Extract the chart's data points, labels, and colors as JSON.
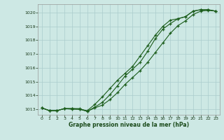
{
  "bg_color": "#cde8e4",
  "grid_color": "#aacccc",
  "line_color": "#1a5c1a",
  "marker_color": "#1a5c1a",
  "xlabel": "Graphe pression niveau de la mer (hPa)",
  "xlabel_color": "#1a4a1a",
  "ylim": [
    1012.6,
    1020.6
  ],
  "xlim": [
    -0.5,
    23.5
  ],
  "yticks": [
    1013,
    1014,
    1015,
    1016,
    1017,
    1018,
    1019,
    1020
  ],
  "xticks": [
    0,
    1,
    2,
    3,
    4,
    5,
    6,
    7,
    8,
    9,
    10,
    11,
    12,
    13,
    14,
    15,
    16,
    17,
    18,
    19,
    20,
    21,
    22,
    23
  ],
  "line1": [
    1013.1,
    1012.9,
    1012.9,
    1013.05,
    1013.05,
    1013.05,
    1012.85,
    1013.1,
    1013.3,
    1013.7,
    1014.2,
    1014.8,
    1015.3,
    1015.8,
    1016.4,
    1017.1,
    1017.8,
    1018.5,
    1019.05,
    1019.4,
    1019.85,
    1020.1,
    1020.15,
    1020.1
  ],
  "line2": [
    1013.1,
    1012.9,
    1012.9,
    1013.05,
    1013.05,
    1013.0,
    1012.85,
    1013.15,
    1013.5,
    1014.05,
    1014.7,
    1015.4,
    1015.9,
    1016.4,
    1017.2,
    1018.1,
    1018.8,
    1019.2,
    1019.55,
    1019.7,
    1020.1,
    1020.2,
    1020.2,
    1020.1
  ],
  "line3": [
    1013.1,
    1012.9,
    1012.9,
    1013.05,
    1013.0,
    1013.0,
    1012.9,
    1013.35,
    1013.9,
    1014.5,
    1015.1,
    1015.6,
    1016.1,
    1016.85,
    1017.6,
    1018.35,
    1019.0,
    1019.45,
    1019.55,
    1019.7,
    1020.1,
    1020.2,
    1020.2,
    1020.1
  ]
}
